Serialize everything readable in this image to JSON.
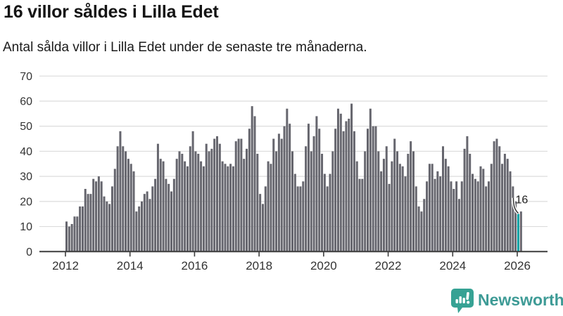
{
  "header": {
    "title": "16 villor såldes i Lilla Edet",
    "subtitle": "Antal sålda villor i Lilla Edet under de senaste tre månaderna."
  },
  "chart_data": {
    "type": "bar",
    "title": "16 villor såldes i Lilla Edet",
    "subtitle": "Antal sålda villor i Lilla Edet under de senaste tre månaderna.",
    "frequency": "monthly",
    "x_start": "2012-01",
    "x_end": "2026-02",
    "ylim": [
      0,
      70
    ],
    "yticks": [
      0,
      10,
      20,
      30,
      40,
      50,
      60,
      70
    ],
    "xticks": [
      2012,
      2014,
      2016,
      2018,
      2020,
      2022,
      2024,
      2026
    ],
    "grid": true,
    "legend_position": "none",
    "bar_color": "#66666E",
    "highlight_color": "#00A4A6",
    "values": [
      12,
      10,
      11,
      14,
      14,
      18,
      18,
      25,
      23,
      23,
      29,
      28,
      30,
      28,
      22,
      20,
      19,
      26,
      33,
      42,
      48,
      42,
      40,
      37,
      35,
      32,
      16,
      18,
      20,
      23,
      24,
      21,
      26,
      29,
      43,
      37,
      36,
      29,
      27,
      24,
      29,
      37,
      40,
      39,
      36,
      34,
      42,
      48,
      40,
      39,
      36,
      34,
      43,
      40,
      41,
      45,
      46,
      43,
      36,
      35,
      34,
      35,
      34,
      44,
      45,
      45,
      37,
      41,
      49,
      58,
      54,
      39,
      23,
      19,
      26,
      36,
      35,
      45,
      40,
      47,
      45,
      50,
      57,
      51,
      40,
      31,
      26,
      26,
      28,
      42,
      51,
      40,
      46,
      54,
      49,
      39,
      31,
      26,
      31,
      40,
      49,
      57,
      55,
      48,
      52,
      53,
      59,
      48,
      36,
      29,
      29,
      40,
      49,
      57,
      50,
      50,
      40,
      32,
      37,
      42,
      27,
      36,
      45,
      40,
      35,
      34,
      30,
      39,
      44,
      40,
      26,
      18,
      16,
      21,
      28,
      35,
      35,
      29,
      32,
      30,
      42,
      37,
      34,
      28,
      25,
      28,
      21,
      28,
      41,
      46,
      39,
      31,
      29,
      28,
      34,
      33,
      26,
      28,
      35,
      44,
      45,
      42,
      35,
      39,
      37,
      32,
      26,
      20,
      15,
      16
    ],
    "highlight": {
      "index_from_end": 1,
      "value": 16,
      "label": "16"
    }
  },
  "footer": {
    "brand": "Newsworthy",
    "brand_color": "#3E9B96",
    "logo_color": "#36A294",
    "logo_icon": "speech-bubble-bar-chart-exclamation"
  }
}
